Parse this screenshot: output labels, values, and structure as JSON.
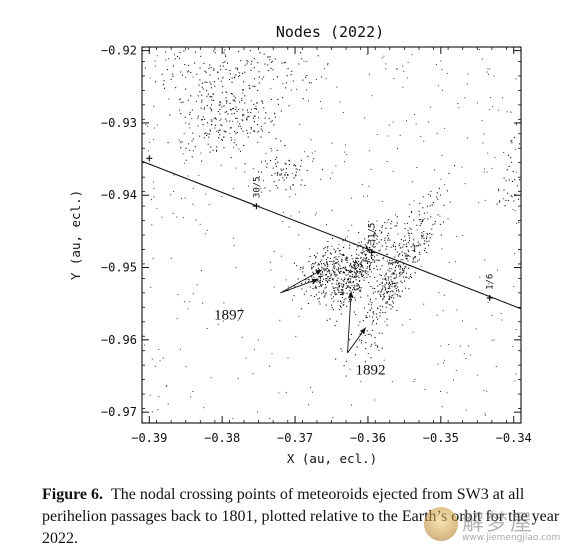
{
  "chart_data": {
    "type": "scatter",
    "title": "Nodes (2022)",
    "xlabel": "X (au, ecl.)",
    "ylabel": "Y (au, ecl.)",
    "xlim": [
      -0.391,
      -0.339
    ],
    "ylim": [
      -0.9715,
      -0.9195
    ],
    "xticks": [
      {
        "value": -0.39,
        "label": "−0.39"
      },
      {
        "value": -0.38,
        "label": "−0.38"
      },
      {
        "value": -0.37,
        "label": "−0.37"
      },
      {
        "value": -0.36,
        "label": "−0.36"
      },
      {
        "value": -0.35,
        "label": "−0.35"
      },
      {
        "value": -0.34,
        "label": "−0.34"
      }
    ],
    "yticks": [
      {
        "value": -0.92,
        "label": "−0.92"
      },
      {
        "value": -0.93,
        "label": "−0.93"
      },
      {
        "value": -0.94,
        "label": "−0.94"
      },
      {
        "value": -0.95,
        "label": "−0.95"
      },
      {
        "value": -0.96,
        "label": "−0.96"
      },
      {
        "value": -0.97,
        "label": "−0.97"
      }
    ],
    "earth_orbit": {
      "points": [
        [
          -0.391,
          -0.9353
        ],
        [
          -0.339,
          -0.9557
        ]
      ],
      "date_marks": [
        {
          "label": "30/5",
          "x": -0.3753,
          "y": -0.9415
        },
        {
          "label": "31/5",
          "x": -0.3595,
          "y": -0.9479
        },
        {
          "label": "1/6",
          "x": -0.3433,
          "y": -0.9542
        }
      ]
    },
    "clusters": [
      {
        "x": -0.3649,
        "y": -0.9506,
        "sx": 0.0025,
        "sy": 0.0016,
        "angle": 35,
        "count": 340
      },
      {
        "x": -0.361,
        "y": -0.95,
        "sx": 0.0035,
        "sy": 0.0009,
        "angle": 58,
        "count": 300
      },
      {
        "x": -0.3561,
        "y": -0.9505,
        "sx": 0.006,
        "sy": 0.0012,
        "angle": 63,
        "count": 420
      },
      {
        "x": -0.3795,
        "y": -0.9285,
        "sx": 0.004,
        "sy": 0.003,
        "angle": 10,
        "count": 260
      },
      {
        "x": -0.3715,
        "y": -0.9365,
        "sx": 0.002,
        "sy": 0.0015,
        "angle": 0,
        "count": 70
      },
      {
        "x": -0.379,
        "y": -0.922,
        "sx": 0.007,
        "sy": 0.0015,
        "angle": 0,
        "count": 120
      },
      {
        "x": -0.3405,
        "y": -0.937,
        "sx": 0.0008,
        "sy": 0.0035,
        "angle": 0,
        "count": 40
      }
    ],
    "background_points": 520,
    "annotations": [
      {
        "text": "1897",
        "x": -0.3811,
        "y": -0.9572,
        "arrows": [
          [
            -0.3663,
            -0.9503
          ],
          [
            -0.3668,
            -0.9516
          ]
        ],
        "from": [
          -0.372,
          -0.9535
        ]
      },
      {
        "text": "1892",
        "x": -0.3617,
        "y": -0.9648,
        "arrows": [
          [
            -0.3623,
            -0.9533
          ],
          [
            -0.3603,
            -0.9583
          ]
        ],
        "from": [
          -0.3628,
          -0.9618
        ]
      }
    ]
  },
  "caption": {
    "label": "Figure 6.",
    "text": "The nodal crossing points of meteoroids ejected from SW3 at all perihelion passages back to 1801, plotted relative to the Earth’s orbit for the year 2022."
  },
  "watermark": {
    "chinese": "解梦屋",
    "url": "www.jiemengjiao.com"
  }
}
